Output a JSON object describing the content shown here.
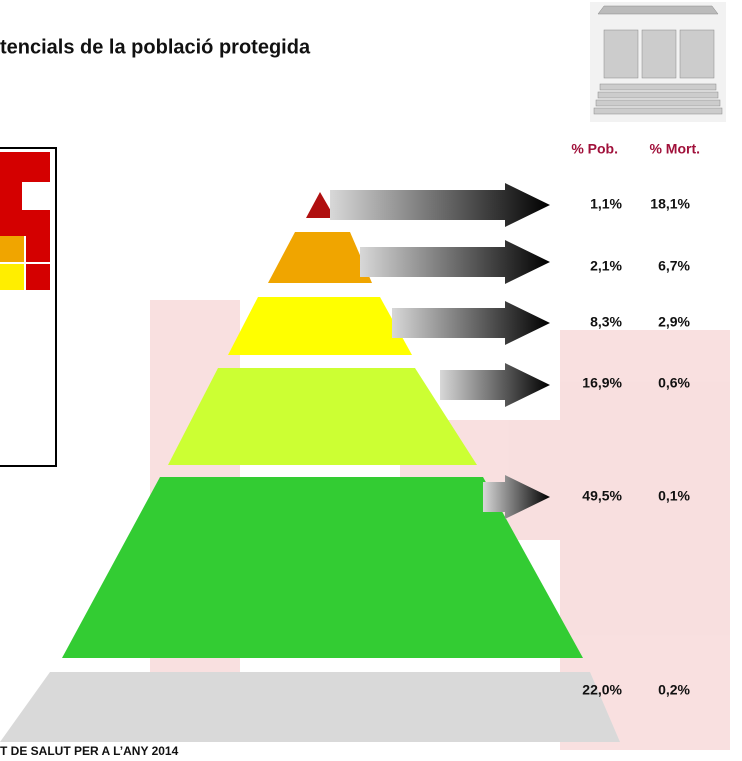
{
  "header": {
    "title": "tencials de la població protegida"
  },
  "table": {
    "columns": [
      "% Pob.",
      "% Mort."
    ],
    "rows": [
      [
        "1,1%",
        "18,1%"
      ],
      [
        "2,1%",
        "6,7%"
      ],
      [
        "8,3%",
        "2,9%"
      ],
      [
        "16,9%",
        "0,6%"
      ],
      [
        "49,5%",
        "0,1%"
      ],
      [
        "22,0%",
        "0,2%"
      ]
    ]
  },
  "footer": {
    "text": "T DE SALUT PER A L’ANY 2014"
  }
}
